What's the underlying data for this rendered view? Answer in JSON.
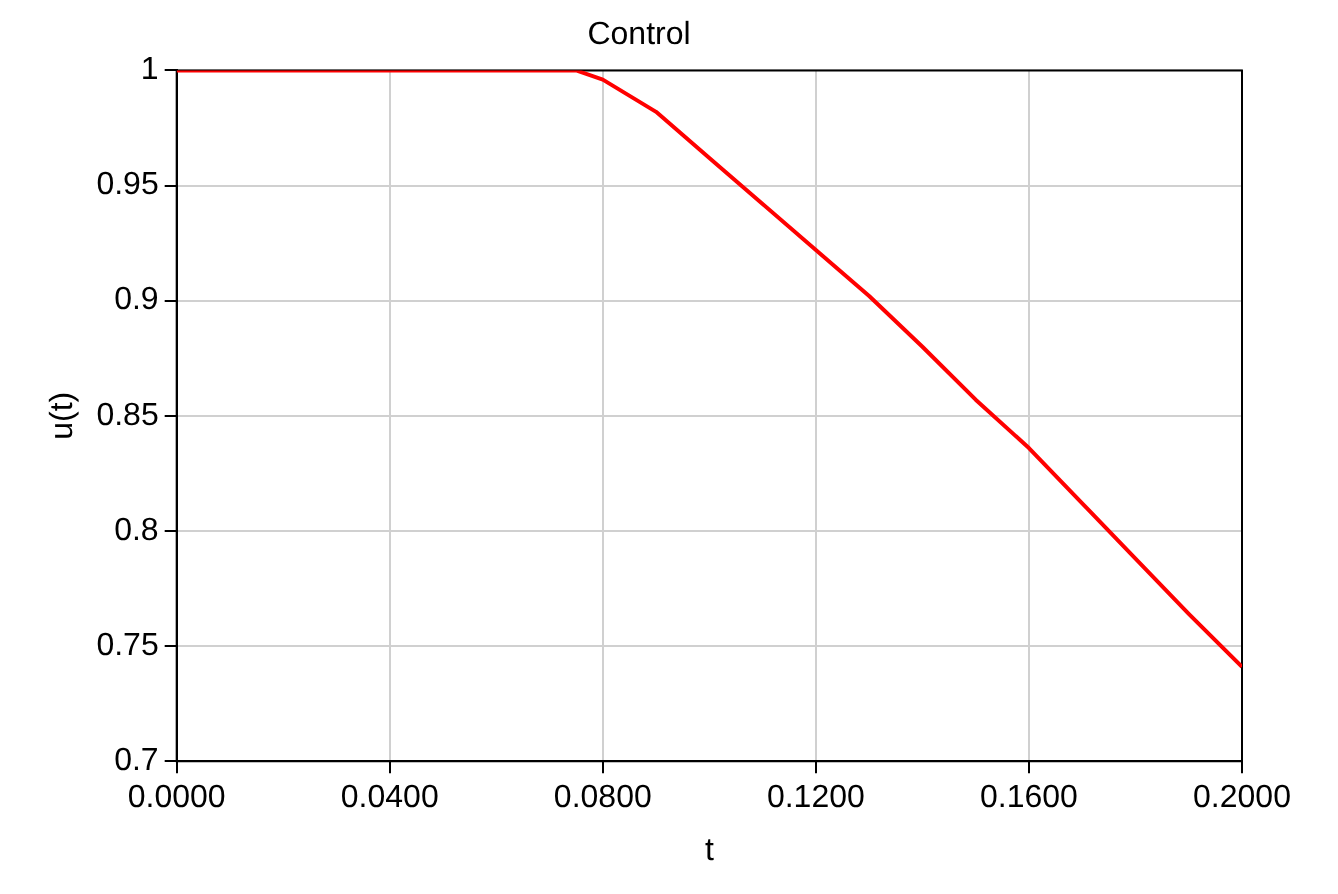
{
  "chart_data": {
    "type": "line",
    "title": "Control",
    "xlabel": "t",
    "ylabel": "u(t)",
    "series": [
      {
        "color": "#ff0000",
        "x": [
          0,
          0.075,
          0.08,
          0.09,
          0.1,
          0.11,
          0.12,
          0.13,
          0.14,
          0.15,
          0.16,
          0.17,
          0.18,
          0.19,
          0.2
        ],
        "values": [
          1,
          1,
          0.996,
          0.982,
          0.962,
          0.942,
          0.922,
          0.902,
          0.88,
          0.857,
          0.836,
          0.812,
          0.788,
          0.764,
          0.741
        ]
      }
    ],
    "xlim": [
      0,
      0.2
    ],
    "xticks": [
      {
        "value": 0,
        "label": "0.0000"
      },
      {
        "value": 0.04,
        "label": "0.0400"
      },
      {
        "value": 0.08,
        "label": "0.0800"
      },
      {
        "value": 0.12,
        "label": "0.1200"
      },
      {
        "value": 0.16,
        "label": "0.1600"
      },
      {
        "value": 0.2,
        "label": "0.2000"
      }
    ],
    "ylim": [
      0.7,
      1
    ],
    "yticks": [
      0.7,
      0.75,
      0.8,
      0.85,
      0.9,
      0.95,
      1
    ],
    "grid": true,
    "legend": false,
    "marker": "none",
    "line_style": "solid"
  }
}
